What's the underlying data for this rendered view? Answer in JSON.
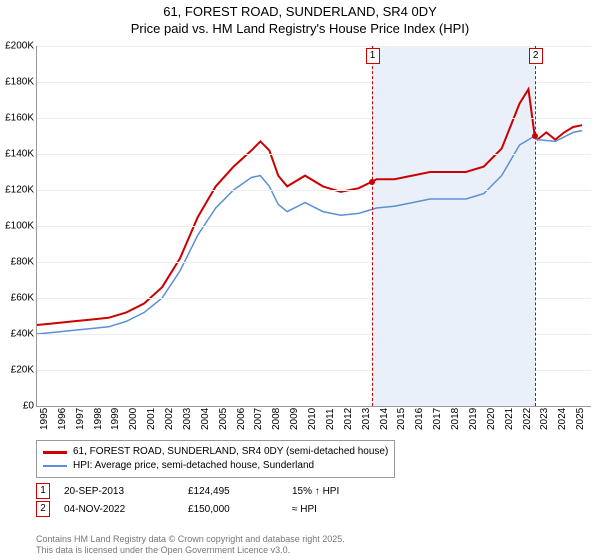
{
  "title_line1": "61, FOREST ROAD, SUNDERLAND, SR4 0DY",
  "title_line2": "Price paid vs. HM Land Registry's House Price Index (HPI)",
  "chart": {
    "type": "line",
    "ylim": [
      0,
      200000
    ],
    "ytick_step": 20000,
    "y_labels": [
      "£0",
      "£20K",
      "£40K",
      "£60K",
      "£80K",
      "£100K",
      "£120K",
      "£140K",
      "£160K",
      "£180K",
      "£200K"
    ],
    "x_start": 1995,
    "x_end": 2026,
    "x_labels": [
      "1995",
      "1996",
      "1997",
      "1998",
      "1999",
      "2000",
      "2001",
      "2002",
      "2003",
      "2004",
      "2005",
      "2006",
      "2007",
      "2008",
      "2009",
      "2010",
      "2011",
      "2012",
      "2013",
      "2014",
      "2015",
      "2016",
      "2017",
      "2018",
      "2019",
      "2020",
      "2021",
      "2022",
      "2023",
      "2024",
      "2025"
    ],
    "background_color": "#ffffff",
    "grid_color": "#eeeeee",
    "shade_color": "#eaf0fa",
    "series": [
      {
        "name": "property",
        "label": "61, FOREST ROAD, SUNDERLAND, SR4 0DY (semi-detached house)",
        "color": "#cc0000",
        "width": 2,
        "data": [
          [
            1995,
            45000
          ],
          [
            1996,
            46000
          ],
          [
            1997,
            47000
          ],
          [
            1998,
            48000
          ],
          [
            1999,
            49000
          ],
          [
            2000,
            52000
          ],
          [
            2001,
            57000
          ],
          [
            2002,
            66000
          ],
          [
            2003,
            82000
          ],
          [
            2004,
            105000
          ],
          [
            2005,
            122000
          ],
          [
            2006,
            133000
          ],
          [
            2007,
            142000
          ],
          [
            2007.5,
            147000
          ],
          [
            2008,
            142000
          ],
          [
            2008.5,
            128000
          ],
          [
            2009,
            122000
          ],
          [
            2010,
            128000
          ],
          [
            2011,
            122000
          ],
          [
            2012,
            119000
          ],
          [
            2013,
            121000
          ],
          [
            2013.72,
            124495
          ],
          [
            2014,
            126000
          ],
          [
            2015,
            126000
          ],
          [
            2016,
            128000
          ],
          [
            2017,
            130000
          ],
          [
            2018,
            130000
          ],
          [
            2019,
            130000
          ],
          [
            2020,
            133000
          ],
          [
            2021,
            143000
          ],
          [
            2022,
            168000
          ],
          [
            2022.5,
            176000
          ],
          [
            2022.85,
            150000
          ],
          [
            2023,
            148000
          ],
          [
            2023.5,
            152000
          ],
          [
            2024,
            148000
          ],
          [
            2024.5,
            152000
          ],
          [
            2025,
            155000
          ],
          [
            2025.5,
            156000
          ]
        ]
      },
      {
        "name": "hpi",
        "label": "HPI: Average price, semi-detached house, Sunderland",
        "color": "#5b8fd6",
        "width": 1.5,
        "data": [
          [
            1995,
            40000
          ],
          [
            1996,
            41000
          ],
          [
            1997,
            42000
          ],
          [
            1998,
            43000
          ],
          [
            1999,
            44000
          ],
          [
            2000,
            47000
          ],
          [
            2001,
            52000
          ],
          [
            2002,
            60000
          ],
          [
            2003,
            75000
          ],
          [
            2004,
            95000
          ],
          [
            2005,
            110000
          ],
          [
            2006,
            120000
          ],
          [
            2007,
            127000
          ],
          [
            2007.5,
            128000
          ],
          [
            2008,
            122000
          ],
          [
            2008.5,
            112000
          ],
          [
            2009,
            108000
          ],
          [
            2010,
            113000
          ],
          [
            2011,
            108000
          ],
          [
            2012,
            106000
          ],
          [
            2013,
            107000
          ],
          [
            2014,
            110000
          ],
          [
            2015,
            111000
          ],
          [
            2016,
            113000
          ],
          [
            2017,
            115000
          ],
          [
            2018,
            115000
          ],
          [
            2019,
            115000
          ],
          [
            2020,
            118000
          ],
          [
            2021,
            128000
          ],
          [
            2022,
            145000
          ],
          [
            2022.85,
            150000
          ],
          [
            2023,
            148000
          ],
          [
            2024,
            147000
          ],
          [
            2025,
            152000
          ],
          [
            2025.5,
            153000
          ]
        ]
      }
    ],
    "markers": [
      {
        "id": "1",
        "x": 2013.72,
        "y": 124495,
        "box_top": true
      },
      {
        "id": "2",
        "x": 2022.85,
        "y": 150000,
        "box_top": true
      }
    ]
  },
  "legend": {
    "items": [
      {
        "color": "#cc0000",
        "label": "61, FOREST ROAD, SUNDERLAND, SR4 0DY (semi-detached house)"
      },
      {
        "color": "#5b8fd6",
        "label": "HPI: Average price, semi-detached house, Sunderland"
      }
    ]
  },
  "sales": [
    {
      "id": "1",
      "date": "20-SEP-2013",
      "price": "£124,495",
      "hpi": "15% ↑ HPI"
    },
    {
      "id": "2",
      "date": "04-NOV-2022",
      "price": "£150,000",
      "hpi": "≈ HPI"
    }
  ],
  "footer_line1": "Contains HM Land Registry data © Crown copyright and database right 2025.",
  "footer_line2": "This data is licensed under the Open Government Licence v3.0."
}
